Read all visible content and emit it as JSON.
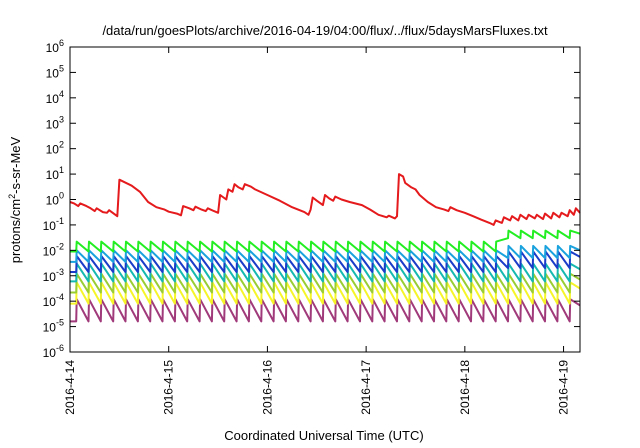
{
  "chart_data": {
    "type": "line",
    "title": "/data/run/goesPlots/archive/2016-04-19/04:00/flux/../flux/5daysMarsFluxes.txt",
    "xlabel": "Coordinated Universal Time (UTC)",
    "ylabel": {
      "base": "protons/cm",
      "sup": "2",
      "rest": "-s-sr-MeV"
    },
    "y_scale": "log",
    "ylim": [
      1e-06,
      1000000.0
    ],
    "y_ticks": [
      {
        "value": -6,
        "label_base": "10",
        "label_exp": "-6"
      },
      {
        "value": -5,
        "label_base": "10",
        "label_exp": "-5"
      },
      {
        "value": -4,
        "label_base": "10",
        "label_exp": "-4"
      },
      {
        "value": -3,
        "label_base": "10",
        "label_exp": "-3"
      },
      {
        "value": -2,
        "label_base": "10",
        "label_exp": "-2"
      },
      {
        "value": -1,
        "label_base": "10",
        "label_exp": "-1"
      },
      {
        "value": 0,
        "label_base": "10",
        "label_exp": "0"
      },
      {
        "value": 1,
        "label_base": "10",
        "label_exp": "1"
      },
      {
        "value": 2,
        "label_base": "10",
        "label_exp": "2"
      },
      {
        "value": 3,
        "label_base": "10",
        "label_exp": "3"
      },
      {
        "value": 4,
        "label_base": "10",
        "label_exp": "4"
      },
      {
        "value": 5,
        "label_base": "10",
        "label_exp": "5"
      },
      {
        "value": 6,
        "label_base": "10",
        "label_exp": "6"
      }
    ],
    "x_range": [
      "2016-04-14T00:00",
      "2016-04-19T04:00"
    ],
    "x_ticks": [
      "2016-4-14",
      "2016-4-15",
      "2016-4-16",
      "2016-4-17",
      "2016-4-18",
      "2016-4-19"
    ],
    "grid": false,
    "legend": "none",
    "series": [
      {
        "color": "#e41a1c",
        "points": [
          [
            "2016-04-14T00:00",
            0.8
          ],
          [
            "2016-04-14T01:00",
            0.7
          ],
          [
            "2016-04-14T02:00",
            0.55
          ],
          [
            "2016-04-14T02:30",
            0.7
          ],
          [
            "2016-04-14T04:00",
            0.55
          ],
          [
            "2016-04-14T05:00",
            0.45
          ],
          [
            "2016-04-14T06:00",
            0.35
          ],
          [
            "2016-04-14T06:30",
            0.45
          ],
          [
            "2016-04-14T08:00",
            0.32
          ],
          [
            "2016-04-14T09:00",
            0.3
          ],
          [
            "2016-04-14T09:30",
            0.38
          ],
          [
            "2016-04-14T11:30",
            0.22
          ],
          [
            "2016-04-14T12:00",
            6
          ],
          [
            "2016-04-14T13:00",
            5
          ],
          [
            "2016-04-14T15:00",
            3.5
          ],
          [
            "2016-04-14T17:00",
            2.0
          ],
          [
            "2016-04-14T19:00",
            0.8
          ],
          [
            "2016-04-14T21:00",
            0.5
          ],
          [
            "2016-04-14T23:00",
            0.4
          ],
          [
            "2016-04-15T00:00",
            0.33
          ],
          [
            "2016-04-15T02:00",
            0.28
          ],
          [
            "2016-04-15T03:00",
            0.24
          ],
          [
            "2016-04-15T03:30",
            0.55
          ],
          [
            "2016-04-15T05:00",
            0.45
          ],
          [
            "2016-04-15T06:00",
            0.38
          ],
          [
            "2016-04-15T06:30",
            0.52
          ],
          [
            "2016-04-15T08:00",
            0.4
          ],
          [
            "2016-04-15T09:00",
            0.35
          ],
          [
            "2016-04-15T09:30",
            0.45
          ],
          [
            "2016-04-15T11:00",
            0.35
          ],
          [
            "2016-04-15T12:00",
            0.3
          ],
          [
            "2016-04-15T12:30",
            1.5
          ],
          [
            "2016-04-15T14:00",
            1.0
          ],
          [
            "2016-04-15T14:30",
            2.5
          ],
          [
            "2016-04-15T15:30",
            2.0
          ],
          [
            "2016-04-15T16:00",
            4
          ],
          [
            "2016-04-15T17:00",
            3.0
          ],
          [
            "2016-04-15T18:00",
            2.5
          ],
          [
            "2016-04-15T18:30",
            4
          ],
          [
            "2016-04-15T20:00",
            3.2
          ],
          [
            "2016-04-15T21:00",
            2.5
          ],
          [
            "2016-04-16T00:00",
            1.5
          ],
          [
            "2016-04-16T03:00",
            0.9
          ],
          [
            "2016-04-16T06:00",
            0.5
          ],
          [
            "2016-04-16T09:00",
            0.32
          ],
          [
            "2016-04-16T10:00",
            0.25
          ],
          [
            "2016-04-16T10:30",
            0.4
          ],
          [
            "2016-04-16T11:00",
            1.2
          ],
          [
            "2016-04-16T12:00",
            0.9
          ],
          [
            "2016-04-16T13:30",
            0.6
          ],
          [
            "2016-04-16T14:00",
            1.5
          ],
          [
            "2016-04-16T15:00",
            1.1
          ],
          [
            "2016-04-16T16:00",
            0.9
          ],
          [
            "2016-04-16T16:30",
            1.3
          ],
          [
            "2016-04-16T18:00",
            1.0
          ],
          [
            "2016-04-16T20:00",
            0.8
          ],
          [
            "2016-04-16T23:00",
            0.6
          ],
          [
            "2016-04-17T01:00",
            0.4
          ],
          [
            "2016-04-17T03:00",
            0.25
          ],
          [
            "2016-04-17T05:00",
            0.2
          ],
          [
            "2016-04-17T05:30",
            0.23
          ],
          [
            "2016-04-17T07:00",
            0.18
          ],
          [
            "2016-04-17T07:30",
            0.22
          ],
          [
            "2016-04-17T08:00",
            10
          ],
          [
            "2016-04-17T09:00",
            8
          ],
          [
            "2016-04-17T09:30",
            4.5
          ],
          [
            "2016-04-17T11:00",
            3
          ],
          [
            "2016-04-17T12:00",
            2.5
          ],
          [
            "2016-04-17T13:00",
            1.5
          ],
          [
            "2016-04-17T15:00",
            0.8
          ],
          [
            "2016-04-17T17:00",
            0.5
          ],
          [
            "2016-04-17T19:00",
            0.4
          ],
          [
            "2016-04-17T20:00",
            0.35
          ],
          [
            "2016-04-17T20:30",
            0.5
          ],
          [
            "2016-04-17T22:00",
            0.38
          ],
          [
            "2016-04-18T00:00",
            0.3
          ],
          [
            "2016-04-18T02:00",
            0.22
          ],
          [
            "2016-04-18T04:00",
            0.16
          ],
          [
            "2016-04-18T06:00",
            0.12
          ],
          [
            "2016-04-18T07:00",
            0.1
          ],
          [
            "2016-04-18T07:30",
            0.15
          ],
          [
            "2016-04-18T09:00",
            0.12
          ],
          [
            "2016-04-18T09:30",
            0.2
          ],
          [
            "2016-04-18T11:00",
            0.15
          ],
          [
            "2016-04-18T11:30",
            0.22
          ],
          [
            "2016-04-18T13:00",
            0.15
          ],
          [
            "2016-04-18T13:30",
            0.25
          ],
          [
            "2016-04-18T15:00",
            0.17
          ],
          [
            "2016-04-18T15:30",
            0.25
          ],
          [
            "2016-04-18T17:00",
            0.18
          ],
          [
            "2016-04-18T17:30",
            0.25
          ],
          [
            "2016-04-18T19:00",
            0.17
          ],
          [
            "2016-04-18T19:30",
            0.28
          ],
          [
            "2016-04-18T21:00",
            0.18
          ],
          [
            "2016-04-18T21:30",
            0.3
          ],
          [
            "2016-04-18T23:00",
            0.2
          ],
          [
            "2016-04-18T23:30",
            0.3
          ],
          [
            "2016-04-19T01:00",
            0.22
          ],
          [
            "2016-04-19T01:30",
            0.38
          ],
          [
            "2016-04-19T02:30",
            0.25
          ],
          [
            "2016-04-19T03:00",
            0.45
          ],
          [
            "2016-04-19T04:00",
            0.3
          ]
        ]
      },
      {
        "color": "#22ee22",
        "sawtooth": {
          "period_hours": 3,
          "peak": 0.022,
          "trough": 0.009,
          "phase_hours": 1.5,
          "after": "2016-04-18T08:00",
          "peak_after": 0.06,
          "trough_after": 0.03
        }
      },
      {
        "color": "#19a2dd",
        "sawtooth": {
          "period_hours": 3,
          "peak": 0.01,
          "trough": 0.0035,
          "phase_hours": 1.5,
          "after": "2016-04-18T08:00",
          "peak_after": 0.015,
          "trough_after": 0.005
        }
      },
      {
        "color": "#1a3cc8",
        "sawtooth": {
          "period_hours": 3,
          "peak": 0.006,
          "trough": 0.0014,
          "phase_hours": 1.5,
          "after": "2016-04-18T08:00",
          "peak_after": 0.009,
          "trough_after": 0.002
        }
      },
      {
        "color": "#16b9b0",
        "sawtooth": {
          "period_hours": 3,
          "peak": 0.003,
          "trough": 0.0006,
          "phase_hours": 1.5
        }
      },
      {
        "color": "#9acd32",
        "sawtooth": {
          "period_hours": 3,
          "peak": 0.0012,
          "trough": 0.00022,
          "phase_hours": 1.5
        }
      },
      {
        "color": "#f5f52a",
        "sawtooth": {
          "period_hours": 3,
          "peak": 0.00055,
          "trough": 8e-05,
          "phase_hours": 1.5
        }
      },
      {
        "color": "#a03a7a",
        "sawtooth": {
          "period_hours": 3,
          "peak": 0.00012,
          "trough": 1.6e-05,
          "phase_hours": 1.5
        }
      }
    ]
  }
}
